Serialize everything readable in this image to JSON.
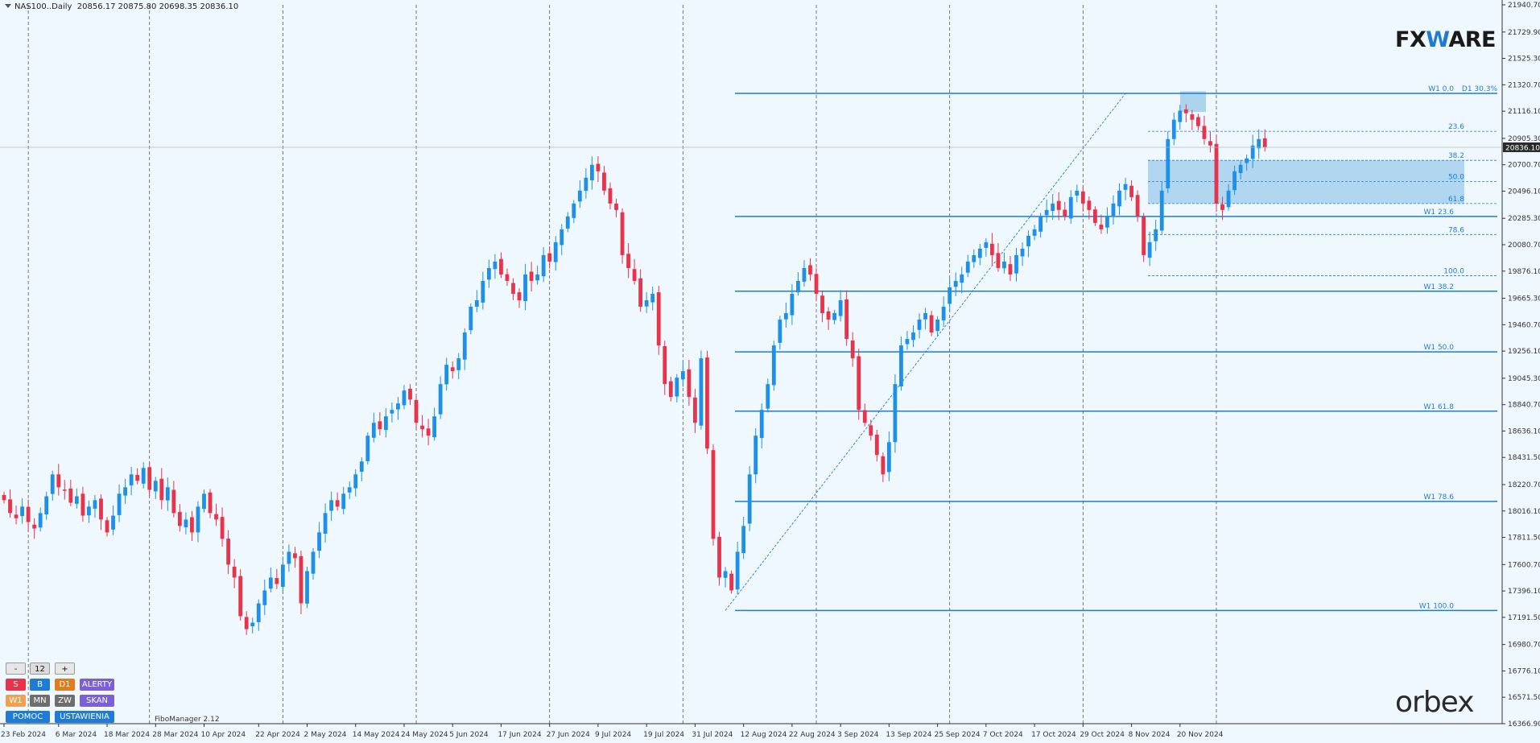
{
  "header": {
    "symbol": "NAS100..Daily",
    "ohlc": "20856.17 20875.80 20698.35 20836.10"
  },
  "logos": {
    "fxware_prefix": "FX",
    "fxware_w": "W",
    "fxware_suffix": "ARE",
    "orbex": "orbex"
  },
  "panel": {
    "minus": "-",
    "count": "12",
    "plus": "+",
    "row1": [
      "S",
      "B",
      "D1",
      "ALERTY"
    ],
    "row2": [
      "W1",
      "MN",
      "ZW",
      "SKAN"
    ],
    "row3": [
      "POMOC",
      "USTAWIENIA"
    ],
    "version": "FiboManager 2.12"
  },
  "colors": {
    "background": "#f0f8ff",
    "bull": "#1e90e8",
    "bear": "#e8334a",
    "fib": "#1e7bd6",
    "zone": "#9ccbe9",
    "panel_red": "#e8334a",
    "panel_blue": "#1e7bd6",
    "panel_orange": "#e07b20",
    "panel_purple": "#7a5fd8",
    "panel_lightorange": "#f0a050",
    "panel_grey": "#6e6e6e"
  },
  "chart_data": {
    "type": "candlestick",
    "title": "NAS100..Daily",
    "current_price": "20836.10",
    "ylim": [
      16366.9,
      21940.7
    ],
    "y_ticks": [
      "21940.70",
      "21729.90",
      "21525.30",
      "21320.70",
      "21116.10",
      "20905.30",
      "20700.70",
      "20496.10",
      "20285.30",
      "20080.70",
      "19876.10",
      "19665.30",
      "19460.70",
      "19256.10",
      "19045.30",
      "18840.70",
      "18636.10",
      "18431.50",
      "18220.70",
      "18016.10",
      "17811.50",
      "17600.70",
      "17396.10",
      "17191.50",
      "16980.70",
      "16776.10",
      "16571.50",
      "16366.90"
    ],
    "x_labels": [
      {
        "i": 0,
        "label": "23 Feb 2024"
      },
      {
        "i": 9,
        "label": "6 Mar 2024"
      },
      {
        "i": 17,
        "label": "18 Mar 2024"
      },
      {
        "i": 25,
        "label": "28 Mar 2024"
      },
      {
        "i": 33,
        "label": "10 Apr 2024"
      },
      {
        "i": 42,
        "label": "22 Apr 2024"
      },
      {
        "i": 50,
        "label": "2 May 2024"
      },
      {
        "i": 58,
        "label": "14 May 2024"
      },
      {
        "i": 66,
        "label": "24 May 2024"
      },
      {
        "i": 74,
        "label": "5 Jun 2024"
      },
      {
        "i": 82,
        "label": "17 Jun 2024"
      },
      {
        "i": 90,
        "label": "27 Jun 2024"
      },
      {
        "i": 98,
        "label": "9 Jul 2024"
      },
      {
        "i": 106,
        "label": "19 Jul 2024"
      },
      {
        "i": 114,
        "label": "31 Jul 2024"
      },
      {
        "i": 122,
        "label": "12 Aug 2024"
      },
      {
        "i": 130,
        "label": "22 Aug 2024"
      },
      {
        "i": 138,
        "label": "3 Sep 2024"
      },
      {
        "i": 146,
        "label": "13 Sep 2024"
      },
      {
        "i": 154,
        "label": "25 Sep 2024"
      },
      {
        "i": 162,
        "label": "7 Oct 2024"
      },
      {
        "i": 170,
        "label": "17 Oct 2024"
      },
      {
        "i": 178,
        "label": "29 Oct 2024"
      },
      {
        "i": 186,
        "label": "8 Nov 2024"
      },
      {
        "i": 194,
        "label": "20 Nov 2024"
      }
    ],
    "vgrid_indices": [
      4,
      24,
      46,
      68,
      90,
      112,
      134,
      156,
      178,
      200
    ],
    "closes": [
      18100,
      18000,
      17960,
      18050,
      17930,
      17880,
      18000,
      18130,
      18300,
      18200,
      18180,
      18080,
      18130,
      17980,
      18050,
      18100,
      17950,
      17850,
      17980,
      18150,
      18200,
      18300,
      18250,
      18350,
      18180,
      18250,
      18100,
      18200,
      18000,
      17900,
      17950,
      17850,
      18050,
      18150,
      18000,
      17950,
      17800,
      17600,
      17500,
      17200,
      17100,
      17150,
      17300,
      17400,
      17500,
      17450,
      17600,
      17700,
      17650,
      17300,
      17550,
      17700,
      17850,
      18000,
      18100,
      18050,
      18150,
      18200,
      18300,
      18400,
      18600,
      18700,
      18650,
      18750,
      18800,
      18850,
      18950,
      18880,
      18700,
      18650,
      18600,
      18750,
      19000,
      19150,
      19100,
      19200,
      19400,
      19600,
      19650,
      19800,
      19900,
      19950,
      19850,
      19800,
      19700,
      19650,
      19850,
      19800,
      19850,
      20000,
      19950,
      20100,
      20200,
      20300,
      20400,
      20500,
      20600,
      20700,
      20650,
      20500,
      20400,
      20350,
      20000,
      19900,
      19800,
      19600,
      19650,
      19700,
      19300,
      19000,
      18900,
      19050,
      19100,
      18900,
      18700,
      19200,
      18500,
      17800,
      17500,
      17550,
      17400,
      17700,
      17900,
      18300,
      18600,
      18800,
      19000,
      19300,
      19500,
      19550,
      19700,
      19800,
      19900,
      19850,
      19700,
      19550,
      19500,
      19550,
      19650,
      19350,
      19200,
      18800,
      18700,
      18600,
      18450,
      18300,
      18550,
      19000,
      19300,
      19350,
      19400,
      19500,
      19550,
      19400,
      19500,
      19600,
      19750,
      19800,
      19850,
      19950,
      20000,
      20050,
      20100,
      20000,
      19900,
      19950,
      19850,
      20000,
      20050,
      20150,
      20200,
      20300,
      20350,
      20400,
      20350,
      20300,
      20450,
      20500,
      20400,
      20350,
      20250,
      20200,
      20300,
      20400,
      20500,
      20550,
      20450,
      20300,
      20000,
      20100,
      20200,
      20500,
      20900,
      21050,
      21120,
      21100,
      21050,
      21000,
      20900,
      20850,
      20400,
      20350,
      20500,
      20650,
      20700,
      20750,
      20850,
      20900,
      20836
    ]
  },
  "fib_levels": {
    "weekly": [
      {
        "price": 21254,
        "label": "W1 0.0",
        "extra": "D1 30.3%"
      },
      {
        "price": 20300,
        "label": "W1 23.6",
        "extra": ""
      },
      {
        "price": 19720,
        "label": "W1 38.2",
        "extra": ""
      },
      {
        "price": 19250,
        "label": "W1 50.0",
        "extra": ""
      },
      {
        "price": 18790,
        "label": "W1 61.8",
        "extra": ""
      },
      {
        "price": 18090,
        "label": "W1 78.6",
        "extra": ""
      },
      {
        "price": 17245,
        "label": "W1 100.0",
        "extra": ""
      }
    ],
    "daily": [
      {
        "price": 20960,
        "label": "23.6"
      },
      {
        "price": 20735,
        "label": "38.2"
      },
      {
        "price": 20570,
        "label": "50.0"
      },
      {
        "price": 20400,
        "label": "61.8"
      },
      {
        "price": 20160,
        "label": "78.6"
      },
      {
        "price": 19840,
        "label": "100.0"
      }
    ],
    "zone_top": 20735,
    "zone_bottom": 20400,
    "peak_box": [
      21270,
      21110
    ]
  }
}
